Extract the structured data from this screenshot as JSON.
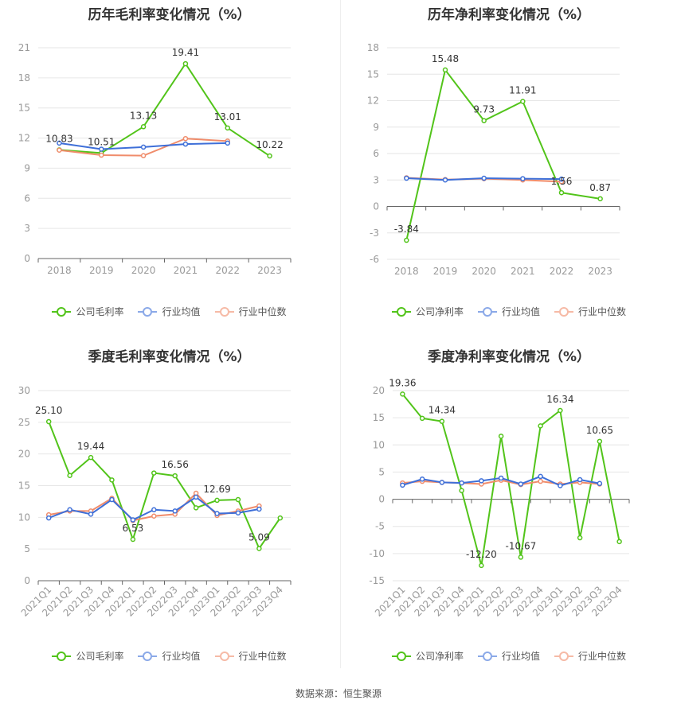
{
  "colors": {
    "company": "#52c41a",
    "avg": "#3e6fd8",
    "median": "#f08c6b",
    "grid": "#e6e6e6",
    "axis": "#999999"
  },
  "source": "数据来源：恒生聚源",
  "chart_data": [
    {
      "type": "line",
      "title": "历年毛利率变化情况（%）",
      "categories": [
        "2018",
        "2019",
        "2020",
        "2021",
        "2022",
        "2023"
      ],
      "ylim": [
        0,
        21
      ],
      "yticks": [
        0,
        3,
        6,
        9,
        12,
        15,
        18,
        21
      ],
      "series": [
        {
          "name": "公司毛利率",
          "values": [
            10.83,
            10.51,
            13.13,
            19.41,
            13.01,
            10.22
          ],
          "labels": [
            "10.83",
            "10.51",
            "13.13",
            "19.41",
            "13.01",
            "10.22"
          ]
        },
        {
          "name": "行业均值",
          "values": [
            11.5,
            10.9,
            11.1,
            11.4,
            11.5,
            null
          ]
        },
        {
          "name": "行业中位数",
          "values": [
            10.8,
            10.3,
            10.25,
            11.95,
            11.7,
            null
          ]
        }
      ],
      "legend": [
        "公司毛利率",
        "行业均值",
        "行业中位数"
      ],
      "grid": true
    },
    {
      "type": "line",
      "title": "历年净利率变化情况（%）",
      "categories": [
        "2018",
        "2019",
        "2020",
        "2021",
        "2022",
        "2023"
      ],
      "ylim": [
        -6,
        18
      ],
      "yticks": [
        -6,
        -3,
        0,
        3,
        6,
        9,
        12,
        15,
        18
      ],
      "series": [
        {
          "name": "公司净利率",
          "values": [
            -3.84,
            15.48,
            9.73,
            11.91,
            1.56,
            0.87
          ],
          "labels": [
            "-3.84",
            "15.48",
            "9.73",
            "11.91",
            "1.56",
            "0.87"
          ]
        },
        {
          "name": "行业均值",
          "values": [
            3.2,
            3.0,
            3.2,
            3.15,
            3.1,
            null
          ]
        },
        {
          "name": "行业中位数",
          "values": [
            3.25,
            3.05,
            3.15,
            3.0,
            2.8,
            null
          ]
        }
      ],
      "legend": [
        "公司净利率",
        "行业均值",
        "行业中位数"
      ],
      "grid": true
    },
    {
      "type": "line",
      "title": "季度毛利率变化情况（%）",
      "categories": [
        "2021Q1",
        "2021Q2",
        "2021Q3",
        "2021Q4",
        "2022Q1",
        "2022Q2",
        "2022Q3",
        "2022Q4",
        "2023Q1",
        "2023Q2",
        "2023Q3",
        "2023Q4"
      ],
      "ylim": [
        0,
        30
      ],
      "yticks": [
        0,
        5,
        10,
        15,
        20,
        25,
        30
      ],
      "series": [
        {
          "name": "公司毛利率",
          "values": [
            25.1,
            16.6,
            19.44,
            15.9,
            6.53,
            17.0,
            16.56,
            11.5,
            12.69,
            12.8,
            5.09,
            9.9
          ],
          "labels": [
            "25.10",
            "",
            "19.44",
            "",
            "6.53",
            "",
            "16.56",
            "",
            "12.69",
            "",
            "5.09",
            ""
          ]
        },
        {
          "name": "行业均值",
          "values": [
            9.9,
            11.2,
            10.5,
            12.8,
            9.6,
            11.2,
            11.0,
            13.2,
            10.6,
            10.7,
            11.3,
            null
          ]
        },
        {
          "name": "行业中位数",
          "values": [
            10.4,
            11.0,
            11.0,
            13.0,
            9.5,
            10.2,
            10.5,
            13.8,
            10.3,
            11.0,
            11.8,
            null
          ]
        }
      ],
      "legend": [
        "公司毛利率",
        "行业均值",
        "行业中位数"
      ],
      "grid": true
    },
    {
      "type": "line",
      "title": "季度净利率变化情况（%）",
      "categories": [
        "2021Q1",
        "2021Q2",
        "2021Q3",
        "2021Q4",
        "2022Q1",
        "2022Q2",
        "2022Q3",
        "2022Q4",
        "2023Q1",
        "2023Q2",
        "2023Q3",
        "2023Q4"
      ],
      "ylim": [
        -15,
        20
      ],
      "yticks": [
        -15,
        -10,
        -5,
        0,
        5,
        10,
        15,
        20
      ],
      "series": [
        {
          "name": "公司净利率",
          "values": [
            19.36,
            14.9,
            14.34,
            1.6,
            -12.2,
            11.6,
            -10.67,
            13.5,
            16.34,
            -7.1,
            10.65,
            -7.8
          ],
          "labels": [
            "19.36",
            "",
            "14.34",
            "",
            "-12.20",
            "",
            "-10.67",
            "",
            "16.34",
            "",
            "10.65",
            ""
          ]
        },
        {
          "name": "行业均值",
          "values": [
            2.6,
            3.7,
            3.1,
            3.0,
            3.4,
            3.9,
            2.8,
            4.2,
            2.5,
            3.6,
            2.9,
            null
          ]
        },
        {
          "name": "行业中位数",
          "values": [
            3.0,
            3.3,
            3.1,
            3.0,
            2.8,
            3.5,
            2.7,
            3.3,
            2.8,
            3.1,
            2.8,
            null
          ]
        }
      ],
      "legend": [
        "公司净利率",
        "行业均值",
        "行业中位数"
      ],
      "grid": true
    }
  ]
}
